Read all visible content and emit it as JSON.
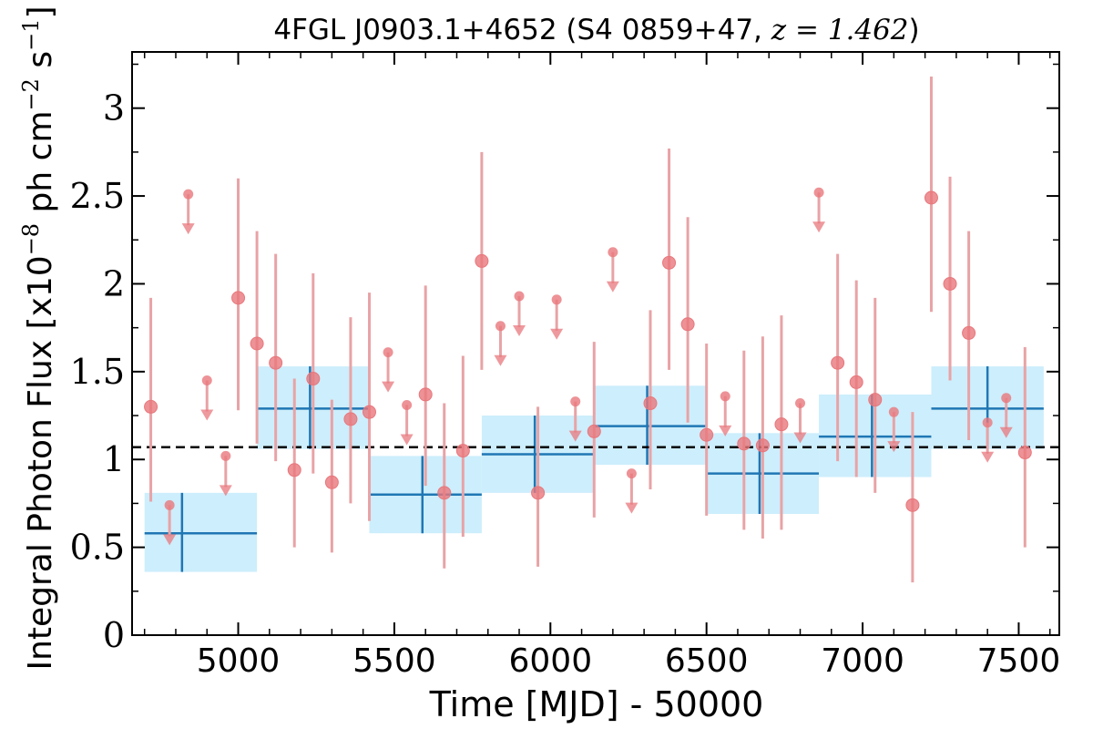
{
  "chart_data": {
    "type": "scatter",
    "title_prefix": "4FGL J0903.1+4652 (S4 0859+47, ",
    "title_math": "z = 1.462",
    "title_suffix": ")",
    "xlabel": "Time [MJD] - 50000",
    "ylabel_prefix": "Integral Photon Flux [x10",
    "ylabel_exp1": "−8",
    "ylabel_mid": " ph cm",
    "ylabel_exp2": "−2",
    "ylabel_mid2": " s",
    "ylabel_exp3": "−1",
    "ylabel_suffix": "]",
    "xlim": [
      4660,
      7630
    ],
    "ylim": [
      0,
      3.32
    ],
    "x_ticks": [
      5000,
      5500,
      6000,
      6500,
      7000,
      7500
    ],
    "x_tick_labels": [
      "5000",
      "5500",
      "6000",
      "6500",
      "7000",
      "7500"
    ],
    "y_ticks": [
      0,
      0.5,
      1,
      1.5,
      2,
      2.5,
      3
    ],
    "y_tick_labels": [
      "0",
      "0.5",
      "1",
      "1.5",
      "2",
      "2.5",
      "3"
    ],
    "mean_flux": 1.07,
    "colors": {
      "points": "#e8777c",
      "points_err": "#e8a3a6",
      "bins": "#1f77b4",
      "bins_fill": "#cdeefc",
      "mean_line": "#000000"
    },
    "bins": [
      {
        "x0": 4700,
        "x1": 5060,
        "xc": 4820,
        "y": 0.58,
        "ylo": 0.36,
        "yhi": 0.81
      },
      {
        "x0": 5060,
        "x1": 5420,
        "xc": 5230,
        "y": 1.29,
        "ylo": 1.06,
        "yhi": 1.53
      },
      {
        "x0": 5420,
        "x1": 5780,
        "xc": 5590,
        "y": 0.8,
        "ylo": 0.58,
        "yhi": 1.02
      },
      {
        "x0": 5780,
        "x1": 6140,
        "xc": 5950,
        "y": 1.03,
        "ylo": 0.81,
        "yhi": 1.25
      },
      {
        "x0": 6140,
        "x1": 6500,
        "xc": 6310,
        "y": 1.19,
        "ylo": 0.97,
        "yhi": 1.42
      },
      {
        "x0": 6500,
        "x1": 6860,
        "xc": 6670,
        "y": 0.92,
        "ylo": 0.69,
        "yhi": 1.15
      },
      {
        "x0": 6860,
        "x1": 7220,
        "xc": 7030,
        "y": 1.13,
        "ylo": 0.9,
        "yhi": 1.37
      },
      {
        "x0": 7220,
        "x1": 7580,
        "xc": 7400,
        "y": 1.29,
        "ylo": 1.06,
        "yhi": 1.53
      }
    ],
    "detections": [
      {
        "x": 4720,
        "y": 1.3,
        "ylo": 0.76,
        "yhi": 1.92
      },
      {
        "x": 5000,
        "y": 1.92,
        "ylo": 1.28,
        "yhi": 2.6
      },
      {
        "x": 5060,
        "y": 1.66,
        "ylo": 1.09,
        "yhi": 2.3
      },
      {
        "x": 5120,
        "y": 1.55,
        "ylo": 0.99,
        "yhi": 2.17
      },
      {
        "x": 5180,
        "y": 0.94,
        "ylo": 0.5,
        "yhi": 1.46
      },
      {
        "x": 5240,
        "y": 1.46,
        "ylo": 0.92,
        "yhi": 2.06
      },
      {
        "x": 5300,
        "y": 0.87,
        "ylo": 0.47,
        "yhi": 1.34
      },
      {
        "x": 5360,
        "y": 1.23,
        "ylo": 0.75,
        "yhi": 1.81
      },
      {
        "x": 5420,
        "y": 1.27,
        "ylo": 0.65,
        "yhi": 1.95
      },
      {
        "x": 5600,
        "y": 1.37,
        "ylo": 0.85,
        "yhi": 1.99
      },
      {
        "x": 5660,
        "y": 0.81,
        "ylo": 0.38,
        "yhi": 1.32
      },
      {
        "x": 5720,
        "y": 1.05,
        "ylo": 0.56,
        "yhi": 1.59
      },
      {
        "x": 5780,
        "y": 2.13,
        "ylo": 1.51,
        "yhi": 2.75
      },
      {
        "x": 5960,
        "y": 0.81,
        "ylo": 0.39,
        "yhi": 1.3
      },
      {
        "x": 6140,
        "y": 1.16,
        "ylo": 0.67,
        "yhi": 1.67
      },
      {
        "x": 6320,
        "y": 1.32,
        "ylo": 0.83,
        "yhi": 1.85
      },
      {
        "x": 6380,
        "y": 2.12,
        "ylo": 1.51,
        "yhi": 2.77
      },
      {
        "x": 6440,
        "y": 1.77,
        "ylo": 1.21,
        "yhi": 2.38
      },
      {
        "x": 6500,
        "y": 1.14,
        "ylo": 0.68,
        "yhi": 1.66
      },
      {
        "x": 6620,
        "y": 1.09,
        "ylo": 0.6,
        "yhi": 1.62
      },
      {
        "x": 6680,
        "y": 1.08,
        "ylo": 0.55,
        "yhi": 1.7
      },
      {
        "x": 6740,
        "y": 1.2,
        "ylo": 0.6,
        "yhi": 1.82
      },
      {
        "x": 6920,
        "y": 1.55,
        "ylo": 0.99,
        "yhi": 2.17
      },
      {
        "x": 6980,
        "y": 1.44,
        "ylo": 0.9,
        "yhi": 2.02
      },
      {
        "x": 7040,
        "y": 1.34,
        "ylo": 0.81,
        "yhi": 1.92
      },
      {
        "x": 7160,
        "y": 0.74,
        "ylo": 0.3,
        "yhi": 1.27
      },
      {
        "x": 7220,
        "y": 2.49,
        "ylo": 1.84,
        "yhi": 3.18
      },
      {
        "x": 7280,
        "y": 2.0,
        "ylo": 1.45,
        "yhi": 2.61
      },
      {
        "x": 7340,
        "y": 1.72,
        "ylo": 1.11,
        "yhi": 2.3
      },
      {
        "x": 7520,
        "y": 1.04,
        "ylo": 0.5,
        "yhi": 1.64
      }
    ],
    "upper_limits": [
      {
        "x": 4780,
        "y": 0.74
      },
      {
        "x": 4840,
        "y": 2.51
      },
      {
        "x": 4900,
        "y": 1.45
      },
      {
        "x": 4960,
        "y": 1.02
      },
      {
        "x": 5480,
        "y": 1.61
      },
      {
        "x": 5540,
        "y": 1.31
      },
      {
        "x": 5840,
        "y": 1.76
      },
      {
        "x": 5900,
        "y": 1.93
      },
      {
        "x": 6020,
        "y": 1.91
      },
      {
        "x": 6080,
        "y": 1.33
      },
      {
        "x": 6200,
        "y": 2.18
      },
      {
        "x": 6260,
        "y": 0.92
      },
      {
        "x": 6560,
        "y": 1.36
      },
      {
        "x": 6800,
        "y": 1.32
      },
      {
        "x": 6860,
        "y": 2.52
      },
      {
        "x": 7100,
        "y": 1.27
      },
      {
        "x": 7400,
        "y": 1.21
      },
      {
        "x": 7460,
        "y": 1.35
      }
    ]
  }
}
